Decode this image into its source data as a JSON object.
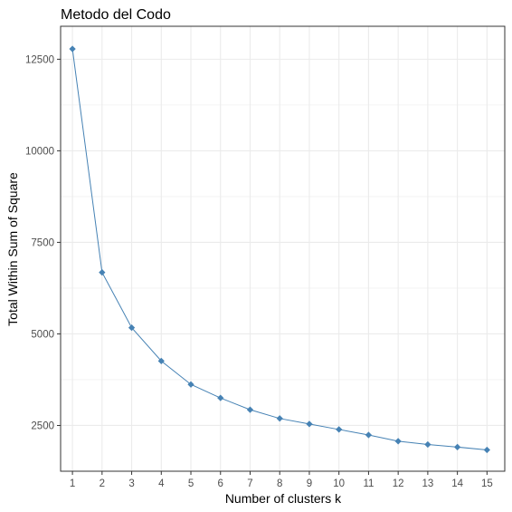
{
  "chart_data": {
    "type": "line",
    "title": "Metodo del Codo",
    "xlabel": "Number of clusters k",
    "ylabel": "Total Within Sum of Square",
    "categories": [
      "1",
      "2",
      "3",
      "4",
      "5",
      "6",
      "7",
      "8",
      "9",
      "10",
      "11",
      "12",
      "13",
      "14",
      "15"
    ],
    "x": [
      1,
      2,
      3,
      4,
      5,
      6,
      7,
      8,
      9,
      10,
      11,
      12,
      13,
      14,
      15
    ],
    "series": [
      {
        "values": [
          12780,
          6680,
          5170,
          4260,
          3620,
          3250,
          2930,
          2690,
          2540,
          2390,
          2240,
          2070,
          1980,
          1910,
          1830
        ]
      }
    ],
    "y_ticks": [
      2500,
      5000,
      7500,
      10000,
      12500
    ],
    "y_tick_labels": [
      "2500",
      "5000",
      "7500",
      "10000",
      "12500"
    ],
    "xlim": [
      0.6,
      15.6
    ],
    "ylim": [
      1250,
      13400
    ],
    "grid": true,
    "line_color": "#4682B4",
    "point_color": "#4682B4",
    "grid_color": "#ebebeb",
    "panel_border_color": "#333333"
  }
}
